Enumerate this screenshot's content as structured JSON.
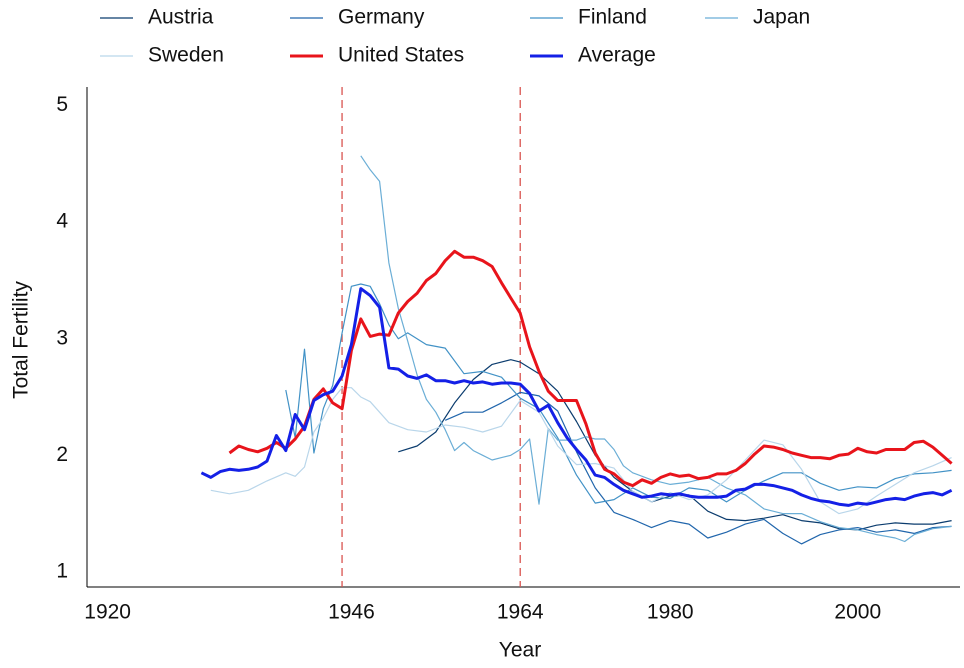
{
  "chart_data": {
    "type": "line",
    "xlabel": "Year",
    "ylabel": "Total Fertility",
    "xlim": [
      1917.8,
      2010.9
    ],
    "xticks": [
      1920,
      1946,
      1964,
      1980,
      2000
    ],
    "ylim": [
      0.87,
      5.16
    ],
    "yticks": [
      1,
      2,
      3,
      4,
      5
    ],
    "vlines": [
      1945,
      1964
    ],
    "vline_color": "#d9534f",
    "grid": false,
    "legend": "top",
    "series": [
      {
        "name": "Austria",
        "color": "#0b3c6e",
        "linewidth": 1.2,
        "x": [
          1951,
          1953,
          1955,
          1957,
          1959,
          1961,
          1963,
          1964,
          1966,
          1968,
          1970,
          1972,
          1974,
          1976,
          1978,
          1980,
          1982,
          1984,
          1986,
          1988,
          1990,
          1992,
          1994,
          1996,
          1998,
          2000,
          2002,
          2004,
          2006,
          2008,
          2010
        ],
        "values": [
          2.03,
          2.08,
          2.2,
          2.45,
          2.65,
          2.78,
          2.82,
          2.8,
          2.7,
          2.55,
          2.29,
          2.0,
          1.81,
          1.69,
          1.6,
          1.65,
          1.66,
          1.52,
          1.45,
          1.44,
          1.46,
          1.49,
          1.44,
          1.42,
          1.37,
          1.36,
          1.4,
          1.42,
          1.41,
          1.41,
          1.44
        ]
      },
      {
        "name": "Germany",
        "color": "#2166ac",
        "linewidth": 1.2,
        "x": [
          1956,
          1958,
          1960,
          1962,
          1964,
          1966,
          1968,
          1970,
          1972,
          1974,
          1976,
          1978,
          1980,
          1982,
          1984,
          1986,
          1988,
          1990,
          1992,
          1994,
          1996,
          1998,
          2000,
          2002,
          2004,
          2006,
          2008,
          2010
        ],
        "values": [
          2.3,
          2.37,
          2.37,
          2.45,
          2.54,
          2.51,
          2.38,
          2.03,
          1.72,
          1.51,
          1.45,
          1.38,
          1.44,
          1.41,
          1.29,
          1.34,
          1.41,
          1.45,
          1.33,
          1.24,
          1.32,
          1.36,
          1.38,
          1.34,
          1.36,
          1.33,
          1.38,
          1.39
        ]
      },
      {
        "name": "Finland",
        "color": "#4292c6",
        "linewidth": 1.2,
        "x": [
          1939,
          1940,
          1941,
          1942,
          1943,
          1944,
          1945,
          1946,
          1947,
          1948,
          1949,
          1950,
          1951,
          1952,
          1954,
          1956,
          1958,
          1960,
          1962,
          1964,
          1966,
          1968,
          1970,
          1972,
          1974,
          1976,
          1978,
          1980,
          1982,
          1984,
          1986,
          1988,
          1990,
          1992,
          1994,
          1996,
          1998,
          2000,
          2002,
          2004,
          2006,
          2008,
          2010
        ],
        "values": [
          2.56,
          2.15,
          2.91,
          2.02,
          2.4,
          2.6,
          3.05,
          3.45,
          3.47,
          3.45,
          3.3,
          3.12,
          3.0,
          3.05,
          2.95,
          2.92,
          2.7,
          2.72,
          2.67,
          2.49,
          2.4,
          2.15,
          1.83,
          1.59,
          1.62,
          1.72,
          1.64,
          1.63,
          1.72,
          1.7,
          1.6,
          1.7,
          1.78,
          1.85,
          1.85,
          1.76,
          1.7,
          1.73,
          1.72,
          1.8,
          1.84,
          1.85,
          1.87
        ]
      },
      {
        "name": "Japan",
        "color": "#6baed6",
        "linewidth": 1.2,
        "x": [
          1947,
          1948,
          1949,
          1950,
          1951,
          1952,
          1953,
          1954,
          1955,
          1956,
          1957,
          1958,
          1959,
          1960,
          1961,
          1962,
          1963,
          1964,
          1965,
          1966,
          1967,
          1968,
          1969,
          1970,
          1971,
          1972,
          1973,
          1974,
          1975,
          1976,
          1978,
          1980,
          1982,
          1984,
          1986,
          1988,
          1990,
          1992,
          1994,
          1996,
          1998,
          2000,
          2002,
          2004,
          2005,
          2006,
          2008,
          2010
        ],
        "values": [
          4.57,
          4.45,
          4.35,
          3.65,
          3.26,
          2.98,
          2.69,
          2.48,
          2.37,
          2.22,
          2.04,
          2.11,
          2.04,
          2.0,
          1.96,
          1.98,
          2.0,
          2.05,
          2.14,
          1.58,
          2.23,
          2.13,
          2.13,
          2.13,
          2.16,
          2.14,
          2.14,
          2.05,
          1.91,
          1.85,
          1.79,
          1.75,
          1.77,
          1.81,
          1.72,
          1.66,
          1.54,
          1.5,
          1.5,
          1.43,
          1.38,
          1.36,
          1.32,
          1.29,
          1.26,
          1.32,
          1.37,
          1.39
        ]
      },
      {
        "name": "Sweden",
        "color": "#b9d6ea",
        "linewidth": 1.2,
        "x": [
          1931,
          1933,
          1935,
          1937,
          1939,
          1940,
          1941,
          1942,
          1943,
          1944,
          1945,
          1946,
          1947,
          1948,
          1950,
          1952,
          1954,
          1956,
          1958,
          1960,
          1962,
          1964,
          1966,
          1968,
          1970,
          1972,
          1974,
          1976,
          1978,
          1980,
          1982,
          1984,
          1986,
          1988,
          1990,
          1992,
          1994,
          1996,
          1998,
          2000,
          2002,
          2004,
          2006,
          2008,
          2010
        ],
        "values": [
          1.7,
          1.67,
          1.7,
          1.78,
          1.85,
          1.82,
          1.9,
          2.2,
          2.32,
          2.48,
          2.58,
          2.58,
          2.5,
          2.46,
          2.28,
          2.22,
          2.2,
          2.26,
          2.24,
          2.2,
          2.25,
          2.47,
          2.37,
          2.08,
          1.92,
          1.93,
          1.89,
          1.69,
          1.6,
          1.68,
          1.62,
          1.66,
          1.79,
          1.96,
          2.13,
          2.09,
          1.88,
          1.6,
          1.5,
          1.54,
          1.65,
          1.75,
          1.85,
          1.91,
          1.98
        ]
      },
      {
        "name": "United States",
        "color": "#e8141b",
        "linewidth": 3,
        "x": [
          1933,
          1934,
          1935,
          1936,
          1937,
          1938,
          1939,
          1940,
          1941,
          1942,
          1943,
          1944,
          1945,
          1946,
          1947,
          1948,
          1949,
          1950,
          1951,
          1952,
          1953,
          1954,
          1955,
          1956,
          1957,
          1958,
          1959,
          1960,
          1961,
          1962,
          1963,
          1964,
          1965,
          1966,
          1967,
          1968,
          1969,
          1970,
          1971,
          1972,
          1973,
          1974,
          1975,
          1976,
          1977,
          1978,
          1979,
          1980,
          1981,
          1982,
          1983,
          1984,
          1985,
          1986,
          1987,
          1988,
          1989,
          1990,
          1991,
          1992,
          1993,
          1994,
          1995,
          1996,
          1997,
          1998,
          1999,
          2000,
          2001,
          2002,
          2003,
          2004,
          2005,
          2006,
          2007,
          2008,
          2009,
          2010
        ],
        "values": [
          2.02,
          2.08,
          2.05,
          2.03,
          2.06,
          2.11,
          2.06,
          2.14,
          2.25,
          2.48,
          2.57,
          2.45,
          2.4,
          2.9,
          3.17,
          3.02,
          3.04,
          3.03,
          3.22,
          3.32,
          3.39,
          3.5,
          3.56,
          3.67,
          3.75,
          3.7,
          3.7,
          3.67,
          3.62,
          3.48,
          3.35,
          3.22,
          2.93,
          2.72,
          2.55,
          2.47,
          2.47,
          2.47,
          2.27,
          2.02,
          1.88,
          1.84,
          1.77,
          1.74,
          1.79,
          1.76,
          1.81,
          1.84,
          1.82,
          1.83,
          1.8,
          1.81,
          1.84,
          1.84,
          1.87,
          1.93,
          2.01,
          2.08,
          2.07,
          2.05,
          2.02,
          2.0,
          1.98,
          1.98,
          1.97,
          2.0,
          2.01,
          2.06,
          2.03,
          2.02,
          2.05,
          2.05,
          2.05,
          2.11,
          2.12,
          2.07,
          2.0,
          1.93
        ]
      },
      {
        "name": "Average",
        "color": "#1420e6",
        "linewidth": 3,
        "x": [
          1930,
          1931,
          1932,
          1933,
          1934,
          1935,
          1936,
          1937,
          1938,
          1939,
          1940,
          1941,
          1942,
          1943,
          1944,
          1945,
          1946,
          1947,
          1948,
          1949,
          1950,
          1951,
          1952,
          1953,
          1954,
          1955,
          1956,
          1957,
          1958,
          1959,
          1960,
          1961,
          1962,
          1963,
          1964,
          1965,
          1966,
          1967,
          1968,
          1969,
          1970,
          1971,
          1972,
          1973,
          1974,
          1975,
          1976,
          1977,
          1978,
          1979,
          1980,
          1981,
          1982,
          1983,
          1984,
          1985,
          1986,
          1987,
          1988,
          1989,
          1990,
          1991,
          1992,
          1993,
          1994,
          1995,
          1996,
          1997,
          1998,
          1999,
          2000,
          2001,
          2002,
          2003,
          2004,
          2005,
          2006,
          2007,
          2008,
          2009,
          2010
        ],
        "values": [
          1.85,
          1.81,
          1.86,
          1.88,
          1.87,
          1.88,
          1.9,
          1.95,
          2.17,
          2.04,
          2.35,
          2.22,
          2.47,
          2.52,
          2.55,
          2.68,
          2.95,
          3.43,
          3.37,
          3.27,
          2.75,
          2.74,
          2.68,
          2.66,
          2.69,
          2.64,
          2.64,
          2.62,
          2.64,
          2.62,
          2.63,
          2.61,
          2.62,
          2.62,
          2.61,
          2.53,
          2.38,
          2.43,
          2.28,
          2.15,
          2.05,
          1.96,
          1.83,
          1.81,
          1.75,
          1.7,
          1.67,
          1.64,
          1.65,
          1.67,
          1.66,
          1.67,
          1.65,
          1.64,
          1.64,
          1.64,
          1.65,
          1.7,
          1.71,
          1.75,
          1.75,
          1.74,
          1.72,
          1.7,
          1.66,
          1.63,
          1.61,
          1.6,
          1.58,
          1.57,
          1.59,
          1.58,
          1.6,
          1.62,
          1.63,
          1.62,
          1.65,
          1.67,
          1.68,
          1.66,
          1.7
        ]
      }
    ]
  }
}
